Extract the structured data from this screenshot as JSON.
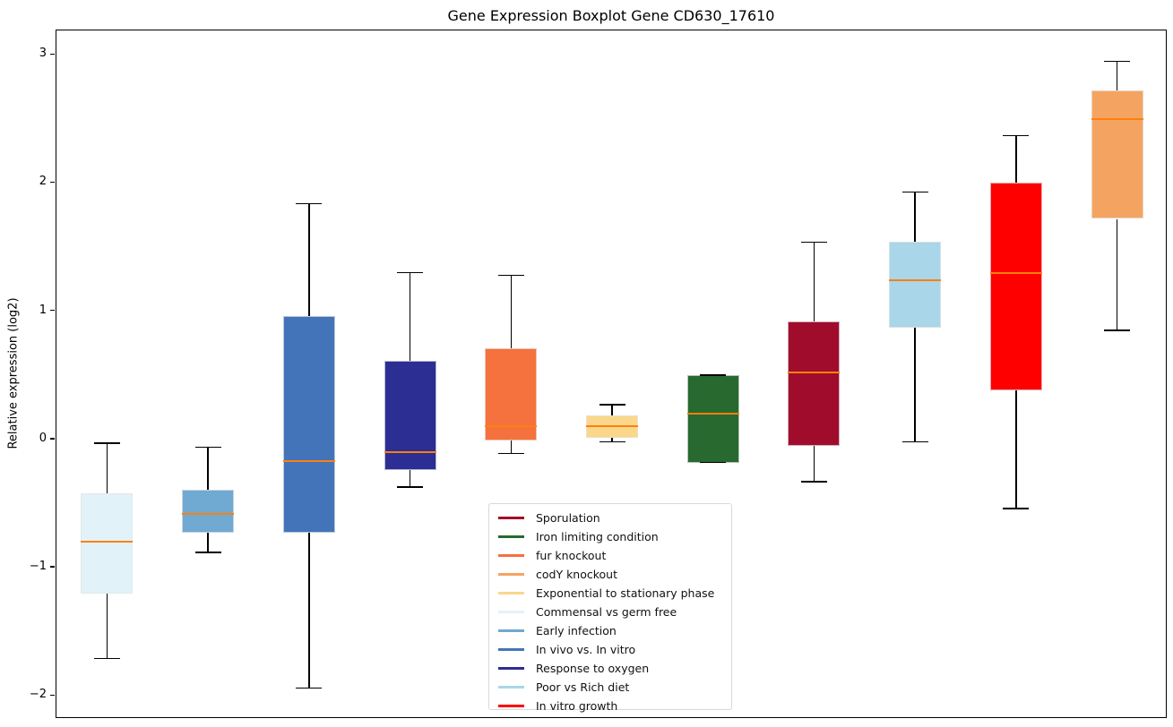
{
  "chart_data": {
    "type": "box",
    "title": "Gene Expression Boxplot Gene CD630_17610",
    "xlabel": "",
    "ylabel": "Relative expression (log2)",
    "yticks": [
      3,
      2,
      1,
      0,
      -1,
      -2
    ],
    "ylim": [
      -2.18,
      3.19
    ],
    "grid": false,
    "legend_position": "lower center",
    "median_color": "#ff7f0e",
    "whisker_color": "#000000",
    "boxes": [
      {
        "label": "Commensal vs germ free",
        "color": "#e2f2f9",
        "whislo": -1.71,
        "q1": -1.2,
        "med": -0.8,
        "q3": -0.42,
        "whishi": -0.03
      },
      {
        "label": "Early infection",
        "color": "#70a9d1",
        "whislo": -0.88,
        "q1": -0.73,
        "med": -0.58,
        "q3": -0.39,
        "whishi": -0.06
      },
      {
        "label": "In vivo vs. In vitro",
        "color": "#4374b9",
        "whislo": -1.94,
        "q1": -0.73,
        "med": -0.17,
        "q3": 0.96,
        "whishi": 1.84
      },
      {
        "label": "Response to oxygen",
        "color": "#2c2e94",
        "whislo": -0.37,
        "q1": -0.24,
        "med": -0.1,
        "q3": 0.61,
        "whishi": 1.3
      },
      {
        "label": "fur knockout",
        "color": "#f5713d",
        "whislo": -0.11,
        "q1": -0.01,
        "med": 0.1,
        "q3": 0.71,
        "whishi": 1.28
      },
      {
        "label": "Exponential to stationary phase",
        "color": "#fbd78b",
        "whislo": -0.02,
        "q1": 0.01,
        "med": 0.1,
        "q3": 0.19,
        "whishi": 0.27
      },
      {
        "label": "Iron limiting condition",
        "color": "#27692f",
        "whislo": -0.18,
        "q1": -0.18,
        "med": 0.2,
        "q3": 0.5,
        "whishi": 0.5
      },
      {
        "label": "Sporulation",
        "color": "#a00d2c",
        "whislo": -0.33,
        "q1": -0.05,
        "med": 0.52,
        "q3": 0.92,
        "whishi": 1.54
      },
      {
        "label": "Poor vs Rich diet",
        "color": "#a9d6e8",
        "whislo": -0.02,
        "q1": 0.87,
        "med": 1.24,
        "q3": 1.54,
        "whishi": 1.93
      },
      {
        "label": "In vitro growth",
        "color": "#ff0000",
        "whislo": -0.54,
        "q1": 0.38,
        "med": 1.3,
        "q3": 2.0,
        "whishi": 2.37
      },
      {
        "label": "codY knockout",
        "color": "#f4a460",
        "whislo": 0.85,
        "q1": 1.72,
        "med": 2.5,
        "q3": 2.72,
        "whishi": 2.95
      }
    ],
    "legend": [
      {
        "label": "Sporulation",
        "color": "#a00d2c"
      },
      {
        "label": "Iron limiting condition",
        "color": "#27692f"
      },
      {
        "label": "fur knockout",
        "color": "#f5713d"
      },
      {
        "label": "codY knockout",
        "color": "#f4a460"
      },
      {
        "label": "Exponential to stationary phase",
        "color": "#fbd78b"
      },
      {
        "label": "Commensal vs germ free",
        "color": "#e2f2f9"
      },
      {
        "label": "Early infection",
        "color": "#70a9d1"
      },
      {
        "label": "In vivo vs. In vitro",
        "color": "#4374b9"
      },
      {
        "label": "Response to oxygen",
        "color": "#2c2e94"
      },
      {
        "label": "Poor vs Rich diet",
        "color": "#a9d6e8"
      },
      {
        "label": "In vitro growth",
        "color": "#ff0000"
      }
    ]
  }
}
